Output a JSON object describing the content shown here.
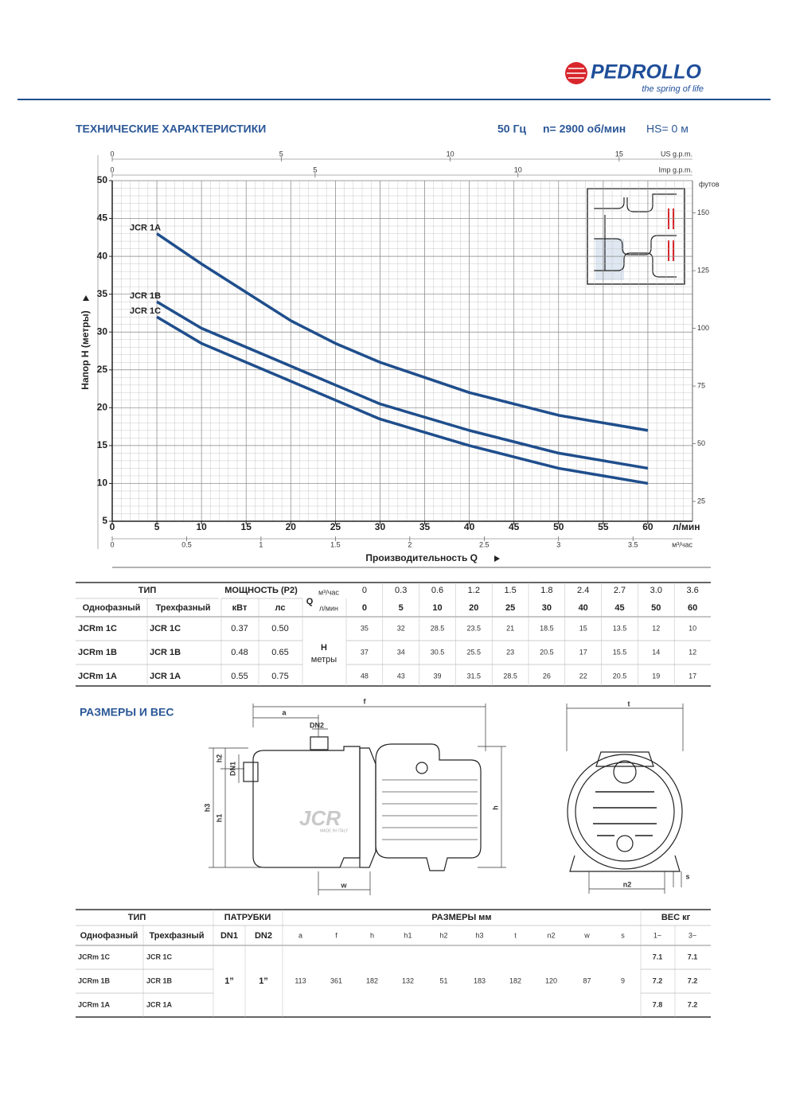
{
  "header": {
    "brand": "PEDROLLO",
    "slogan": "the spring of life"
  },
  "section_performance": {
    "title": "ТЕХНИЧЕСКИЕ ХАРАКТЕРИСТИКИ",
    "frequency": "50 Гц",
    "speed": "n= 2900 об/мин",
    "suction": "HS= 0 м"
  },
  "chart_data": {
    "type": "line",
    "x_label": "Производительность Q",
    "y_label": "Напор H (метры)",
    "x_unit": "л/мин",
    "x": [
      5,
      10,
      20,
      25,
      30,
      40,
      45,
      50,
      60
    ],
    "series": [
      {
        "name": "JCR 1A",
        "color": "#1f4e8c",
        "values": [
          43,
          39,
          31.5,
          28.5,
          26,
          22,
          20.5,
          19,
          17
        ]
      },
      {
        "name": "JCR 1B",
        "color": "#1f4e8c",
        "values": [
          34,
          30.5,
          25.5,
          23,
          20.5,
          17,
          15.5,
          14,
          12
        ]
      },
      {
        "name": "JCR 1C",
        "color": "#1f4e8c",
        "values": [
          32,
          28.5,
          23.5,
          21,
          18.5,
          15,
          13.5,
          12,
          10
        ]
      }
    ],
    "xlim": [
      0,
      65
    ],
    "ylim": [
      5,
      50
    ],
    "xticks": [
      0,
      5,
      10,
      15,
      20,
      25,
      30,
      35,
      40,
      45,
      50,
      55,
      60
    ],
    "yticks": [
      5,
      10,
      15,
      20,
      25,
      30,
      35,
      40,
      45,
      50
    ],
    "grid": true,
    "secondary_axes": [
      {
        "label": "US g.p.m.",
        "position": "top",
        "lim": [
          0,
          17.17
        ],
        "ticks": [
          0,
          5,
          10,
          15
        ]
      },
      {
        "label": "Imp g.p.m.",
        "position": "top",
        "lim": [
          0,
          14.3
        ],
        "ticks": [
          0,
          5,
          10
        ]
      },
      {
        "label": "м³/час",
        "position": "bottom",
        "lim": [
          0,
          3.9
        ],
        "ticks": [
          0,
          0.5,
          1,
          1.5,
          2,
          2.5,
          3,
          3.5
        ]
      },
      {
        "label": "футов",
        "position": "right",
        "lim": [
          16.4,
          164.0
        ],
        "ticks": [
          25,
          50,
          75,
          100,
          125,
          150
        ]
      }
    ]
  },
  "performance_table": {
    "type_header": "ТИП",
    "power_header": "МОЩНОСТЬ (P2)",
    "single_phase": "Однофазный",
    "three_phase": "Трехфазный",
    "kw": "кВт",
    "hp": "лс",
    "q_label": "Q",
    "q_unit_m3h": "м³/час",
    "q_unit_lmin": "л/мин",
    "h_label": "H",
    "h_unit": "метры",
    "flow_m3h": [
      "0",
      "0.3",
      "0.6",
      "1.2",
      "1.5",
      "1.8",
      "2.4",
      "2.7",
      "3.0",
      "3.6"
    ],
    "flow_lmin": [
      "0",
      "5",
      "10",
      "20",
      "25",
      "30",
      "40",
      "45",
      "50",
      "60"
    ],
    "rows": [
      {
        "single": "JCRm 1C",
        "three": "JCR 1C",
        "kw": "0.37",
        "hp": "0.50",
        "head": [
          "35",
          "32",
          "28.5",
          "23.5",
          "21",
          "18.5",
          "15",
          "13.5",
          "12",
          "10"
        ]
      },
      {
        "single": "JCRm 1B",
        "three": "JCR 1B",
        "kw": "0.48",
        "hp": "0.65",
        "head": [
          "37",
          "34",
          "30.5",
          "25.5",
          "23",
          "20.5",
          "17",
          "15.5",
          "14",
          "12"
        ]
      },
      {
        "single": "JCRm 1A",
        "three": "JCR 1A",
        "kw": "0.55",
        "hp": "0.75",
        "head": [
          "48",
          "43",
          "39",
          "31.5",
          "28.5",
          "26",
          "22",
          "20.5",
          "19",
          "17"
        ]
      }
    ]
  },
  "section_dimensions": {
    "title": "РАЗМЕРЫ И ВЕС"
  },
  "drawing": {
    "watermark": "JCR",
    "origin": "MADE IN ITALY",
    "labels": [
      "f",
      "a",
      "DN2",
      "h2",
      "DN1",
      "h3",
      "h1",
      "h",
      "w",
      "t",
      "n2",
      "s"
    ]
  },
  "dimensions_table": {
    "type_header": "ТИП",
    "ports_header": "ПАТРУБКИ",
    "dims_header": "РАЗМЕРЫ мм",
    "weight_header": "ВЕС кг",
    "single_phase": "Однофазный",
    "three_phase": "Трехфазный",
    "port_columns": [
      "DN1",
      "DN2"
    ],
    "dim_columns": [
      "a",
      "f",
      "h",
      "h1",
      "h2",
      "h3",
      "t",
      "n2",
      "w",
      "s"
    ],
    "weight_columns": [
      "1~",
      "3~"
    ],
    "ports": [
      "1”",
      "1”"
    ],
    "dims": [
      "113",
      "361",
      "182",
      "132",
      "51",
      "183",
      "182",
      "120",
      "87",
      "9"
    ],
    "rows": [
      {
        "single": "JCRm 1C",
        "three": "JCR 1C",
        "weights": [
          "7.1",
          "7.1"
        ]
      },
      {
        "single": "JCRm 1B",
        "three": "JCR 1B",
        "weights": [
          "7.2",
          "7.2"
        ]
      },
      {
        "single": "JCRm 1A",
        "three": "JCR 1A",
        "weights": [
          "7.8",
          "7.2"
        ]
      }
    ]
  }
}
